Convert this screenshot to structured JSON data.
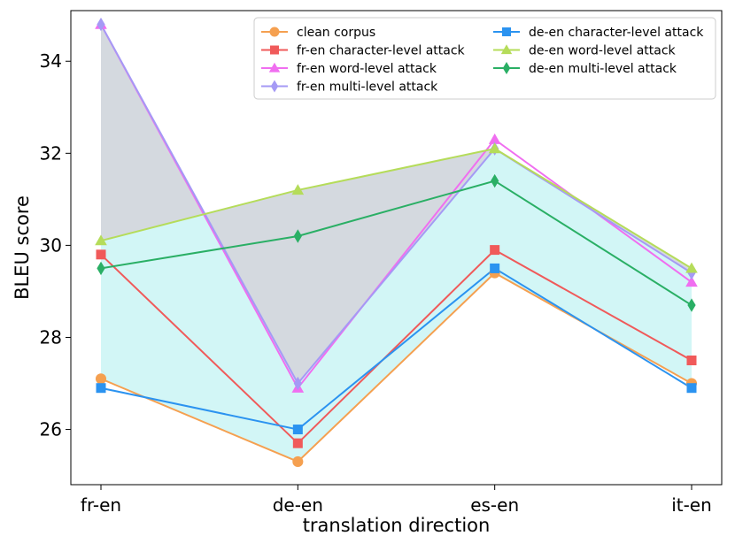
{
  "chart_data": {
    "type": "line",
    "title": "",
    "xlabel": "translation direction",
    "ylabel": "BLEU score",
    "categories": [
      "fr-en",
      "de-en",
      "es-en",
      "it-en"
    ],
    "ylim": [
      24.8,
      35.1
    ],
    "yticks": [
      26,
      28,
      30,
      32,
      34
    ],
    "grid": false,
    "legend_position": "top-right",
    "series": [
      {
        "name": "clean corpus",
        "values": [
          27.1,
          25.3,
          29.4,
          27.0
        ],
        "color": "#f5a050",
        "marker": "circle"
      },
      {
        "name": "fr-en character-level attack",
        "values": [
          29.8,
          25.7,
          29.9,
          27.5
        ],
        "color": "#f05a5a",
        "marker": "square"
      },
      {
        "name": "fr-en word-level attack",
        "values": [
          34.8,
          26.9,
          32.3,
          29.2
        ],
        "color": "#f06ef0",
        "marker": "triangle"
      },
      {
        "name": "fr-en multi-level attack",
        "values": [
          34.8,
          27.0,
          32.1,
          29.4
        ],
        "color": "#a59af5",
        "marker": "diamond"
      },
      {
        "name": "de-en character-level attack",
        "values": [
          26.9,
          26.0,
          29.5,
          26.9
        ],
        "color": "#2b93f0",
        "marker": "square"
      },
      {
        "name": "de-en word-level attack",
        "values": [
          30.1,
          31.2,
          32.1,
          29.5
        ],
        "color": "#b5dc5a",
        "marker": "triangle"
      },
      {
        "name": "de-en multi-level attack",
        "values": [
          29.5,
          30.2,
          31.4,
          28.7
        ],
        "color": "#2aaf65",
        "marker": "diamond"
      }
    ],
    "bands": [
      {
        "from_series": 0,
        "to_series": 5,
        "color": "#d2f6f6"
      },
      {
        "from_series": 5,
        "to_series": 3,
        "color": "#d4d9df"
      }
    ]
  }
}
